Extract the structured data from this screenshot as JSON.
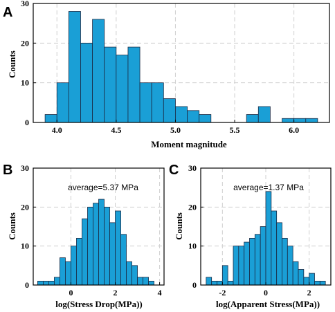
{
  "colors": {
    "bar": "#1a9fd6",
    "bar_edge": "#1b2a44",
    "grid": "#cfcfcf"
  },
  "chart_data": [
    {
      "type": "bar",
      "panel": "A",
      "xlabel": "Moment magnitude",
      "ylabel": "Counts",
      "annotation": "",
      "xlim": [
        3.8,
        6.3
      ],
      "ylim": [
        0,
        30
      ],
      "xticks": [
        4.0,
        4.5,
        5.0,
        5.5,
        6.0
      ],
      "xtick_labels": [
        "4.0",
        "4.5",
        "5.0",
        "5.5",
        "6.0"
      ],
      "yticks": [
        0,
        10,
        20,
        30
      ],
      "grid": true,
      "bin_width": 0.1,
      "bins": [
        {
          "x": 3.9,
          "count": 2
        },
        {
          "x": 4.0,
          "count": 10
        },
        {
          "x": 4.1,
          "count": 28
        },
        {
          "x": 4.2,
          "count": 20
        },
        {
          "x": 4.3,
          "count": 26
        },
        {
          "x": 4.4,
          "count": 19
        },
        {
          "x": 4.5,
          "count": 17
        },
        {
          "x": 4.6,
          "count": 19
        },
        {
          "x": 4.7,
          "count": 10
        },
        {
          "x": 4.8,
          "count": 10
        },
        {
          "x": 4.9,
          "count": 6
        },
        {
          "x": 5.0,
          "count": 4
        },
        {
          "x": 5.1,
          "count": 3
        },
        {
          "x": 5.2,
          "count": 2
        },
        {
          "x": 5.3,
          "count": 0
        },
        {
          "x": 5.4,
          "count": 0
        },
        {
          "x": 5.5,
          "count": 0
        },
        {
          "x": 5.6,
          "count": 2
        },
        {
          "x": 5.7,
          "count": 4
        },
        {
          "x": 5.8,
          "count": 0
        },
        {
          "x": 5.9,
          "count": 1
        },
        {
          "x": 6.0,
          "count": 1
        },
        {
          "x": 6.1,
          "count": 1
        }
      ]
    },
    {
      "type": "bar",
      "panel": "B",
      "xlabel": "log(Stress Drop(MPa))",
      "ylabel": "Counts",
      "annotation": "average=5.37 MPa",
      "xlim": [
        -1.7,
        4.2
      ],
      "ylim": [
        0,
        30
      ],
      "xticks": [
        0,
        2,
        4
      ],
      "xtick_labels": [
        "0",
        "2",
        "4"
      ],
      "yticks": [
        0,
        10,
        20,
        30
      ],
      "grid": true,
      "bin_width": 0.25,
      "bins": [
        {
          "x": -1.5,
          "count": 1
        },
        {
          "x": -1.25,
          "count": 1
        },
        {
          "x": -1.0,
          "count": 1
        },
        {
          "x": -0.75,
          "count": 2
        },
        {
          "x": -0.5,
          "count": 7
        },
        {
          "x": -0.25,
          "count": 6
        },
        {
          "x": 0.0,
          "count": 10
        },
        {
          "x": 0.25,
          "count": 12
        },
        {
          "x": 0.5,
          "count": 17
        },
        {
          "x": 0.75,
          "count": 20
        },
        {
          "x": 1.0,
          "count": 21
        },
        {
          "x": 1.25,
          "count": 22
        },
        {
          "x": 1.5,
          "count": 20
        },
        {
          "x": 1.75,
          "count": 16
        },
        {
          "x": 2.0,
          "count": 19
        },
        {
          "x": 2.25,
          "count": 13
        },
        {
          "x": 2.5,
          "count": 6
        },
        {
          "x": 2.75,
          "count": 5
        },
        {
          "x": 3.0,
          "count": 2
        },
        {
          "x": 3.25,
          "count": 2
        },
        {
          "x": 3.5,
          "count": 1
        }
      ]
    },
    {
      "type": "bar",
      "panel": "C",
      "xlabel": "log(Apparent Stress(MPa))",
      "ylabel": "Counts",
      "annotation": "average=1.37 MPa",
      "xlim": [
        -3.0,
        3.0
      ],
      "ylim": [
        0,
        30
      ],
      "xticks": [
        -2,
        0,
        2
      ],
      "xtick_labels": [
        "-2",
        "0",
        "2"
      ],
      "yticks": [
        0,
        10,
        20,
        30
      ],
      "grid": true,
      "bin_width": 0.25,
      "bins": [
        {
          "x": -2.75,
          "count": 2
        },
        {
          "x": -2.5,
          "count": 1
        },
        {
          "x": -2.25,
          "count": 1
        },
        {
          "x": -2.0,
          "count": 5
        },
        {
          "x": -1.75,
          "count": 1
        },
        {
          "x": -1.5,
          "count": 10
        },
        {
          "x": -1.25,
          "count": 10
        },
        {
          "x": -1.0,
          "count": 11
        },
        {
          "x": -0.75,
          "count": 12
        },
        {
          "x": -0.5,
          "count": 13
        },
        {
          "x": -0.25,
          "count": 15
        },
        {
          "x": 0.0,
          "count": 24
        },
        {
          "x": 0.25,
          "count": 19
        },
        {
          "x": 0.5,
          "count": 16
        },
        {
          "x": 0.75,
          "count": 12
        },
        {
          "x": 1.0,
          "count": 10
        },
        {
          "x": 1.25,
          "count": 6
        },
        {
          "x": 1.5,
          "count": 4
        },
        {
          "x": 1.75,
          "count": 2
        },
        {
          "x": 2.0,
          "count": 3
        },
        {
          "x": 2.25,
          "count": 1
        },
        {
          "x": 2.5,
          "count": 1
        }
      ]
    }
  ]
}
